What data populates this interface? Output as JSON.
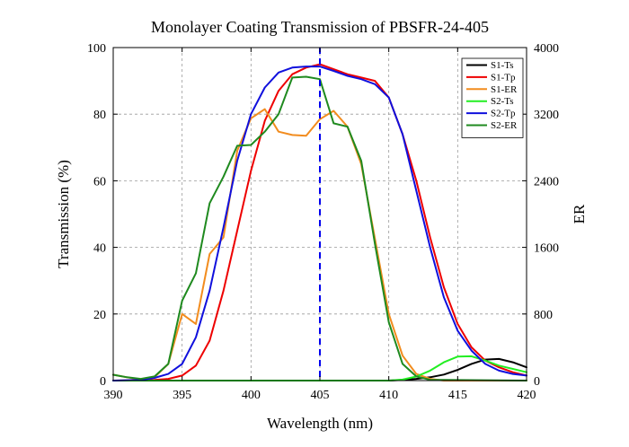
{
  "chart_data": {
    "type": "line",
    "title": "Monolayer Coating Transmission of PBSFR-24-405",
    "xlabel": "Wavelength (nm)",
    "ylabel": "Transmission (%)",
    "y2label": "ER",
    "xlim": [
      390,
      420
    ],
    "ylim": [
      0,
      100
    ],
    "y2lim": [
      0,
      4000
    ],
    "xticks": [
      "390",
      "395",
      "400",
      "405",
      "410",
      "415",
      "420"
    ],
    "yticks": [
      "0",
      "20",
      "40",
      "60",
      "80",
      "100"
    ],
    "y2ticks": [
      "0",
      "800",
      "1600",
      "2400",
      "3200",
      "4000"
    ],
    "grid": true,
    "legend_position": "top-right",
    "marker_line": {
      "x": 405,
      "color": "#0000ee",
      "style": "dashed"
    },
    "series": [
      {
        "name": "S1-Ts",
        "color": "#000000",
        "axis": "left",
        "x": [
          390,
          395,
          400,
          405,
          410,
          411,
          412,
          413,
          414,
          415,
          416,
          417,
          418,
          419,
          420
        ],
        "y": [
          0,
          0,
          0,
          0,
          0,
          0.2,
          0.5,
          1,
          1.8,
          3.2,
          5,
          6.3,
          6.5,
          5.5,
          4
        ]
      },
      {
        "name": "S1-Tp",
        "color": "#ee0000",
        "axis": "left",
        "x": [
          390,
          392,
          393,
          394,
          395,
          396,
          397,
          398,
          399,
          400,
          401,
          402,
          403,
          404,
          405,
          406,
          407,
          408,
          409,
          410,
          411,
          412,
          413,
          414,
          415,
          416,
          417,
          418,
          419,
          420
        ],
        "y": [
          0,
          0.1,
          0.2,
          0.5,
          1.5,
          4.5,
          12,
          27,
          45,
          63,
          78,
          87,
          92,
          94,
          95,
          93.5,
          92,
          91,
          90,
          85,
          74,
          60,
          43,
          28,
          17,
          10,
          6,
          4,
          2.5,
          1.5
        ]
      },
      {
        "name": "S1-ER",
        "color": "#f28c1e",
        "axis": "right",
        "x": [
          390,
          391,
          392,
          393,
          394,
          395,
          396,
          397,
          398,
          399,
          400,
          401,
          402,
          403,
          404,
          405,
          406,
          407,
          408,
          409,
          410,
          411,
          412,
          413,
          414,
          420
        ],
        "y": [
          70,
          40,
          10,
          40,
          200,
          800,
          680,
          1520,
          1720,
          2760,
          3150,
          3260,
          2990,
          2950,
          2940,
          3140,
          3240,
          3050,
          2600,
          1700,
          800,
          300,
          80,
          20,
          0,
          0
        ]
      },
      {
        "name": "S2-Ts",
        "color": "#22ee22",
        "axis": "left",
        "x": [
          390,
          410,
          411,
          412,
          413,
          414,
          415,
          416,
          417,
          418,
          419,
          420
        ],
        "y": [
          0,
          0,
          0.3,
          1.2,
          3,
          5.5,
          7.2,
          7.3,
          6,
          4.5,
          3.5,
          2.5
        ]
      },
      {
        "name": "S2-Tp",
        "color": "#1010dd",
        "axis": "left",
        "x": [
          390,
          392,
          393,
          394,
          395,
          396,
          397,
          398,
          399,
          400,
          401,
          402,
          403,
          404,
          405,
          406,
          407,
          408,
          409,
          410,
          411,
          412,
          413,
          414,
          415,
          416,
          417,
          418,
          419,
          420
        ],
        "y": [
          0,
          0.2,
          0.8,
          2,
          5,
          13,
          27,
          46,
          66,
          80,
          88,
          92.5,
          94,
          94.3,
          94.3,
          93,
          91.5,
          90.5,
          89,
          85,
          74,
          57,
          40,
          25,
          15,
          9,
          5,
          3,
          2,
          1.5
        ]
      },
      {
        "name": "S2-ER",
        "color": "#1f8a1f",
        "axis": "right",
        "x": [
          390,
          391,
          392,
          393,
          394,
          395,
          396,
          397,
          398,
          399,
          400,
          401,
          402,
          403,
          404,
          405,
          406,
          407,
          408,
          409,
          410,
          411,
          412,
          413,
          420
        ],
        "y": [
          70,
          40,
          20,
          50,
          200,
          960,
          1290,
          2130,
          2450,
          2820,
          2830,
          2990,
          3200,
          3640,
          3650,
          3620,
          3090,
          3050,
          2640,
          1640,
          700,
          200,
          50,
          10,
          0
        ]
      }
    ]
  }
}
